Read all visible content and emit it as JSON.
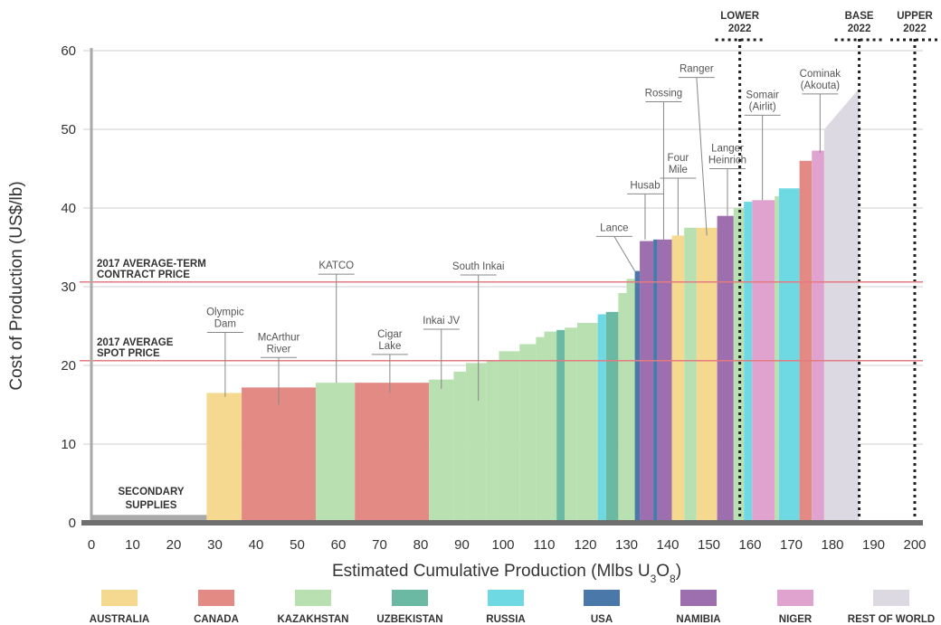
{
  "chart_data": {
    "type": "bar",
    "ylabel": "Cost of Production (US$/lb)",
    "xlabel_main": "Estimated Cumulative Production (Mlbs U",
    "xlabel_sub": "3",
    "xlabel_o": "O",
    "xlabel_sub2": "8",
    "xlabel_close": ")",
    "xlim": [
      0,
      200
    ],
    "ylim": [
      0,
      60
    ],
    "x_ticks": [
      "0",
      "10",
      "20",
      "30",
      "40",
      "50",
      "60",
      "70",
      "80",
      "90",
      "100",
      "110",
      "120",
      "130",
      "140",
      "150",
      "160",
      "170",
      "180",
      "190",
      "200"
    ],
    "y_ticks": [
      "0",
      "10",
      "20",
      "30",
      "40",
      "50",
      "60"
    ],
    "colors": {
      "AUSTRALIA": "#f6d991",
      "CANADA": "#e48a84",
      "KAZAKHSTAN": "#b8e0b0",
      "UZBEKISTAN": "#6bb9a2",
      "RUSSIA": "#6fd9e3",
      "USA": "#4a79a9",
      "NAMIBIA": "#9d6fae",
      "NIGER": "#e0a3cf",
      "REST OF WORLD": "#dcd9e3",
      "SECONDARY": "#a9a9a9"
    },
    "legend": [
      "AUSTRALIA",
      "CANADA",
      "KAZAKHSTAN",
      "UZBEKISTAN",
      "RUSSIA",
      "USA",
      "NAMIBIA",
      "NIGER",
      "REST OF WORLD"
    ],
    "secondary_label": [
      "SECONDARY",
      "SUPPLIES"
    ],
    "bars": [
      {
        "x0": 0,
        "x1": 28,
        "y": 1,
        "c": "SECONDARY"
      },
      {
        "x0": 28,
        "x1": 36.5,
        "y": 16.5,
        "c": "AUSTRALIA"
      },
      {
        "x0": 36.5,
        "x1": 54.5,
        "y": 17.2,
        "c": "CANADA"
      },
      {
        "x0": 54.5,
        "x1": 64,
        "y": 17.8,
        "c": "KAZAKHSTAN"
      },
      {
        "x0": 64,
        "x1": 82,
        "y": 17.8,
        "c": "CANADA"
      },
      {
        "x0": 82,
        "x1": 88,
        "y": 18.2,
        "c": "KAZAKHSTAN"
      },
      {
        "x0": 88,
        "x1": 91,
        "y": 19.2,
        "c": "KAZAKHSTAN"
      },
      {
        "x0": 91,
        "x1": 96,
        "y": 20.3,
        "c": "KAZAKHSTAN"
      },
      {
        "x0": 96,
        "x1": 99,
        "y": 20.6,
        "c": "KAZAKHSTAN"
      },
      {
        "x0": 99,
        "x1": 104,
        "y": 21.8,
        "c": "KAZAKHSTAN"
      },
      {
        "x0": 104,
        "x1": 108,
        "y": 22.7,
        "c": "KAZAKHSTAN"
      },
      {
        "x0": 108,
        "x1": 110,
        "y": 23.6,
        "c": "KAZAKHSTAN"
      },
      {
        "x0": 110,
        "x1": 113,
        "y": 24.3,
        "c": "KAZAKHSTAN"
      },
      {
        "x0": 113,
        "x1": 115,
        "y": 24.5,
        "c": "UZBEKISTAN"
      },
      {
        "x0": 115,
        "x1": 118,
        "y": 24.8,
        "c": "KAZAKHSTAN"
      },
      {
        "x0": 118,
        "x1": 123,
        "y": 25.4,
        "c": "KAZAKHSTAN"
      },
      {
        "x0": 123,
        "x1": 125,
        "y": 26.5,
        "c": "RUSSIA"
      },
      {
        "x0": 125,
        "x1": 128,
        "y": 26.8,
        "c": "UZBEKISTAN"
      },
      {
        "x0": 128,
        "x1": 130,
        "y": 29.2,
        "c": "KAZAKHSTAN"
      },
      {
        "x0": 130,
        "x1": 132,
        "y": 31,
        "c": "KAZAKHSTAN"
      },
      {
        "x0": 132,
        "x1": 133.2,
        "y": 32,
        "c": "USA"
      },
      {
        "x0": 133.2,
        "x1": 136.5,
        "y": 35.8,
        "c": "NAMIBIA"
      },
      {
        "x0": 136.5,
        "x1": 137.5,
        "y": 36,
        "c": "USA"
      },
      {
        "x0": 137.5,
        "x1": 141,
        "y": 36,
        "c": "NAMIBIA"
      },
      {
        "x0": 141,
        "x1": 144,
        "y": 36.5,
        "c": "AUSTRALIA"
      },
      {
        "x0": 144,
        "x1": 147,
        "y": 37.5,
        "c": "KAZAKHSTAN"
      },
      {
        "x0": 147,
        "x1": 152,
        "y": 37.5,
        "c": "AUSTRALIA"
      },
      {
        "x0": 152,
        "x1": 156,
        "y": 39,
        "c": "NAMIBIA"
      },
      {
        "x0": 156,
        "x1": 158.5,
        "y": 40,
        "c": "KAZAKHSTAN"
      },
      {
        "x0": 158.5,
        "x1": 160.5,
        "y": 40.8,
        "c": "RUSSIA"
      },
      {
        "x0": 160.5,
        "x1": 166,
        "y": 41,
        "c": "NIGER"
      },
      {
        "x0": 166,
        "x1": 167,
        "y": 41.5,
        "c": "KAZAKHSTAN"
      },
      {
        "x0": 167,
        "x1": 172,
        "y": 42.5,
        "c": "RUSSIA"
      },
      {
        "x0": 172,
        "x1": 175,
        "y": 46,
        "c": "CANADA"
      },
      {
        "x0": 175,
        "x1": 178,
        "y": 47.3,
        "c": "NIGER"
      }
    ],
    "rest_of_world": {
      "x0": 178,
      "x1": 186.5,
      "y_start": 50,
      "y_end": 55.2
    },
    "price_lines": [
      {
        "y": 30.6,
        "label": [
          "2017 AVERAGE-TERM",
          "CONTRACT PRICE"
        ]
      },
      {
        "y": 20.6,
        "label": [
          "2017 AVERAGE",
          "SPOT PRICE"
        ]
      }
    ],
    "scenarios": [
      {
        "x": 157.5,
        "label": [
          "LOWER",
          "2022"
        ]
      },
      {
        "x": 186.5,
        "label": [
          "BASE",
          "2022"
        ]
      },
      {
        "x": 200,
        "label": [
          "UPPER",
          "2022"
        ]
      }
    ],
    "annotations": [
      {
        "label": [
          "Olympic",
          "Dam"
        ],
        "x": 32.5,
        "tx": 32.5,
        "y_bar": 16,
        "y_top": 24.2
      },
      {
        "label": [
          "McArthur",
          "River"
        ],
        "x": 45.5,
        "tx": 45.5,
        "y_bar": 15,
        "y_top": 21
      },
      {
        "label": [
          "KATCO"
        ],
        "x": 59.5,
        "tx": 59.5,
        "y_bar": 17.8,
        "y_top": 31.6
      },
      {
        "label": [
          "Cigar",
          "Lake"
        ],
        "x": 72.5,
        "tx": 72.5,
        "y_bar": 16.5,
        "y_top": 21.4
      },
      {
        "label": [
          "Inkai JV"
        ],
        "x": 85,
        "tx": 85,
        "y_bar": 17,
        "y_top": 24.6
      },
      {
        "label": [
          "South Inkai"
        ],
        "x": 94,
        "tx": 94,
        "y_bar": 15.5,
        "y_top": 31.5
      },
      {
        "label": [
          "Lance"
        ],
        "x": 132,
        "tx": 127,
        "y_bar": 32,
        "y_top": 36.4,
        "slant": true
      },
      {
        "label": [
          "Husab"
        ],
        "x": 134.5,
        "tx": 134.5,
        "y_bar": 36,
        "y_top": 41.8
      },
      {
        "label": [
          "Rossing"
        ],
        "x": 139,
        "tx": 139,
        "y_bar": 36,
        "y_top": 53.5
      },
      {
        "label": [
          "Four",
          "Mile"
        ],
        "x": 142.5,
        "tx": 142.5,
        "y_bar": 36.5,
        "y_top": 43.8
      },
      {
        "label": [
          "Ranger"
        ],
        "x": 149.5,
        "tx": 147,
        "y_bar": 36.5,
        "y_top": 56.6,
        "slant": true
      },
      {
        "label": [
          "Langer",
          "Heinrich"
        ],
        "x": 154.5,
        "tx": 154.5,
        "y_bar": 39,
        "y_top": 45
      },
      {
        "label": [
          "Somair",
          "(Airlit)"
        ],
        "x": 163,
        "tx": 163,
        "y_bar": 41,
        "y_top": 51.8
      },
      {
        "label": [
          "Cominak",
          "(Akouta)"
        ],
        "x": 177,
        "tx": 177,
        "y_bar": 47,
        "y_top": 54.5
      }
    ]
  }
}
